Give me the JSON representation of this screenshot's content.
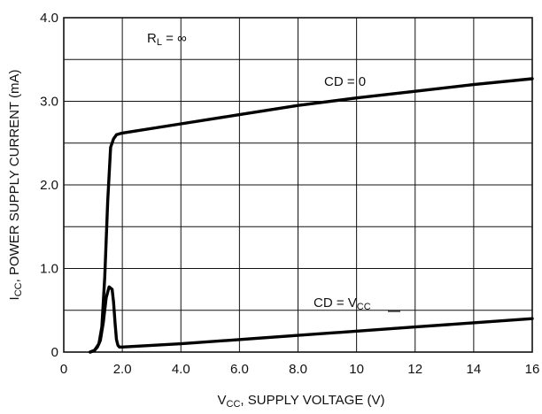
{
  "chart_data": {
    "type": "line",
    "xlabel": {
      "main": "V",
      "sub": "CC",
      "rest": ", SUPPLY VOLTAGE (V)"
    },
    "ylabel": {
      "main": "I",
      "sub": "CC",
      "rest": ", POWER SUPPLY CURRENT (mA)"
    },
    "xlim": [
      0,
      16
    ],
    "ylim": [
      0,
      4
    ],
    "grid": true,
    "x_ticks": [
      0,
      2,
      4,
      6,
      8,
      10,
      12,
      14,
      16
    ],
    "x_tick_labels": [
      "0",
      "2.0",
      "4.0",
      "6.0",
      "8.0",
      "10",
      "12",
      "14",
      "16"
    ],
    "y_ticks": [
      0,
      1,
      2,
      3,
      4
    ],
    "y_tick_labels": [
      "0",
      "1.0",
      "2.0",
      "3.0",
      "4.0"
    ],
    "annotations": {
      "rl": {
        "main": "R",
        "sub": "L",
        "rest": " = ∞"
      },
      "cd0": {
        "text": "CD = 0"
      },
      "cdvcc": {
        "main": "CD = V",
        "sub": "CC"
      }
    },
    "series": [
      {
        "label_ref": "cd0",
        "x": [
          0.9,
          1.05,
          1.2,
          1.3,
          1.4,
          1.5,
          1.6,
          1.7,
          1.8,
          2.0,
          4.0,
          6.0,
          8.0,
          10.0,
          12.0,
          14.0,
          16.0
        ],
        "y": [
          0.0,
          0.02,
          0.1,
          0.3,
          0.9,
          1.8,
          2.45,
          2.55,
          2.6,
          2.62,
          2.73,
          2.84,
          2.95,
          3.04,
          3.12,
          3.2,
          3.27
        ]
      },
      {
        "label_ref": "cdvcc",
        "x": [
          0.9,
          1.05,
          1.15,
          1.25,
          1.35,
          1.45,
          1.55,
          1.65,
          1.7,
          1.75,
          1.8,
          1.85,
          1.9,
          2.0,
          4.0,
          8.0,
          12.0,
          16.0
        ],
        "y": [
          0.0,
          0.02,
          0.06,
          0.14,
          0.35,
          0.65,
          0.78,
          0.75,
          0.6,
          0.35,
          0.15,
          0.08,
          0.06,
          0.06,
          0.1,
          0.2,
          0.3,
          0.4
        ]
      }
    ]
  }
}
